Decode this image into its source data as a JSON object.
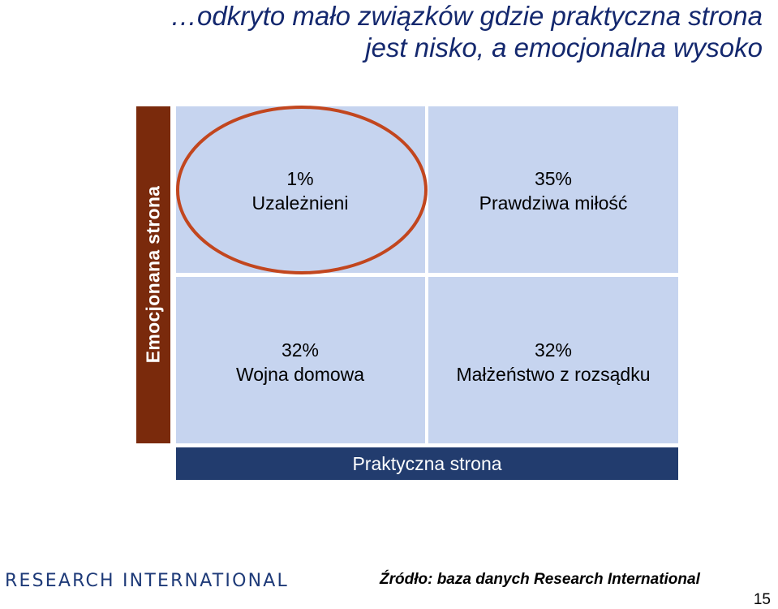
{
  "title": {
    "line1": "…odkryto mało związków gdzie praktyczna strona",
    "line2": "jest nisko, a emocjonalna wysoko"
  },
  "axes": {
    "vertical_label": "Emocjonana strona",
    "horizontal_label": "Praktyczna strona"
  },
  "quadrants": {
    "top_left": {
      "percent": "1%",
      "label": "Uzależnieni"
    },
    "top_right": {
      "percent": "35%",
      "label": "Prawdziwa miłość"
    },
    "bottom_left": {
      "percent": "32%",
      "label": "Wojna domowa"
    },
    "bottom_right": {
      "percent": "32%",
      "label": "Małżeństwo z rozsądku"
    }
  },
  "highlight": {
    "target": "top_left",
    "color": "#c2461e"
  },
  "footer": {
    "logo": "RESEARCH INTERNATIONAL",
    "source": "Źródło: baza danych Research International",
    "page_number": "15"
  },
  "colors": {
    "title": "#14286e",
    "vertical_bar": "#7a2a0c",
    "horizontal_bar": "#223c6e",
    "cell": "#c6d4ef"
  }
}
